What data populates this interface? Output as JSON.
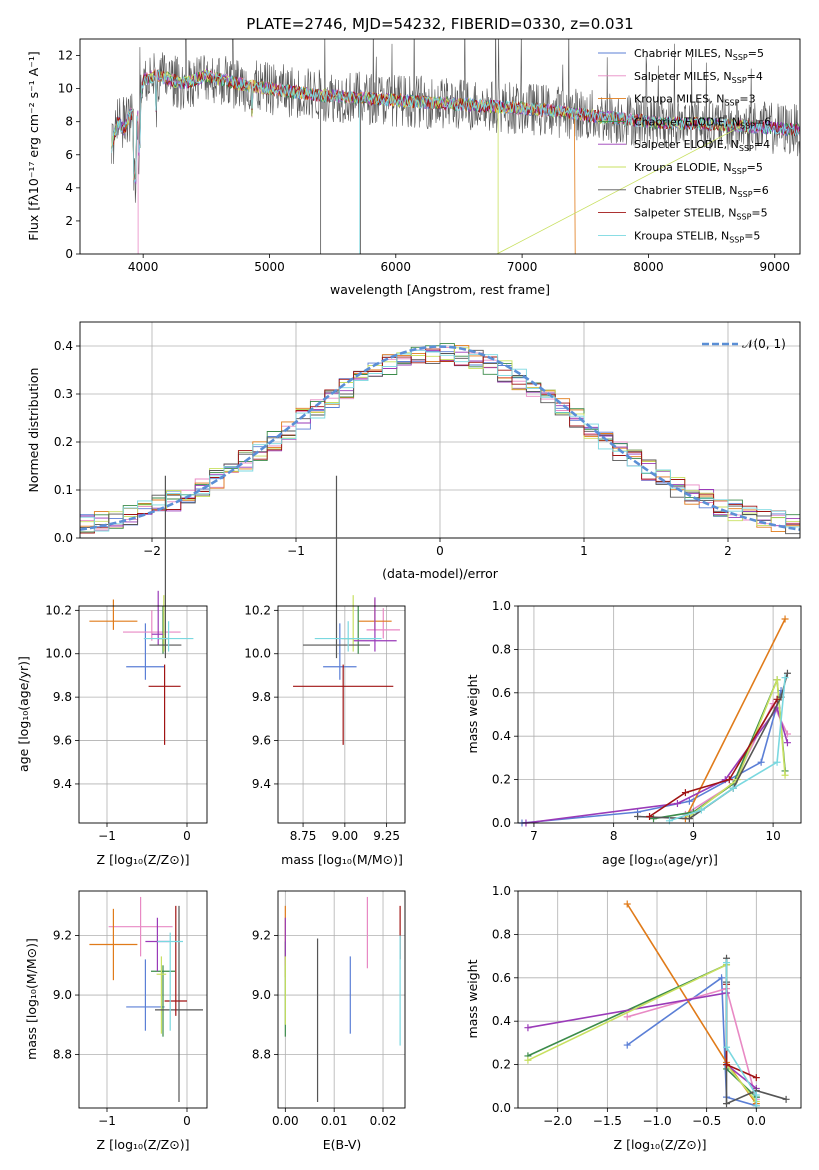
{
  "colors": [
    "#5b7fd6",
    "#e889c4",
    "#e07b1a",
    "#3b8b4a",
    "#9a3ab8",
    "#c8e060",
    "#555555",
    "#a01414",
    "#7ad8e0"
  ],
  "spectrum": {
    "title": "PLATE=2746, MJD=54232, FIBERID=0330, z=0.031",
    "xlabel": "wavelength [Angstrom, rest frame]",
    "ylabel": "Flux [fλ10⁻¹⁷ erg cm⁻² s⁻¹ A⁻¹]",
    "xticks": [
      "4000",
      "5000",
      "6000",
      "7000",
      "8000",
      "9000"
    ],
    "yticks": [
      "0",
      "2",
      "4",
      "6",
      "8",
      "10",
      "12"
    ],
    "legend": [
      {
        "model": "Chabrier MILES, N",
        "sub": "SSP",
        "tail": "=5"
      },
      {
        "model": "Salpeter MILES, N",
        "sub": "SSP",
        "tail": "=4"
      },
      {
        "model": "Kroupa MILES, N",
        "sub": "SSP",
        "tail": "=3"
      },
      {
        "model": "Chabrier ELODIE, N",
        "sub": "SSP",
        "tail": "=6"
      },
      {
        "model": "Salpeter ELODIE, N",
        "sub": "SSP",
        "tail": "=4"
      },
      {
        "model": "Kroupa ELODIE, N",
        "sub": "SSP",
        "tail": "=5"
      },
      {
        "model": "Chabrier STELIB, N",
        "sub": "SSP",
        "tail": "=6"
      },
      {
        "model": "Salpeter STELIB, N",
        "sub": "SSP",
        "tail": "=5"
      },
      {
        "model": "Kroupa STELIB, N",
        "sub": "SSP",
        "tail": "=5"
      }
    ]
  },
  "residuals": {
    "xlabel": "(data-model)/error",
    "ylabel": "Normed distribution",
    "xticks": [
      "−2",
      "−1",
      "0",
      "1",
      "2"
    ],
    "yticks": [
      "0.0",
      "0.1",
      "0.2",
      "0.3",
      "0.4"
    ],
    "legend": "𝒩(0, 1)"
  },
  "age_z": {
    "xlabel": "Z [log₁₀(Z/Z⊙)]",
    "ylabel": "age  [log₁₀(age/yr)]",
    "xticks": [
      "−1",
      "0"
    ],
    "yticks": [
      "9.4",
      "9.6",
      "9.8",
      "10.0",
      "10.2"
    ]
  },
  "age_mass": {
    "xlabel": "mass [log₁₀(M/M⊙)]",
    "xticks": [
      "8.75",
      "9.00",
      "9.25"
    ],
    "yticks": [
      "9.4",
      "9.6",
      "9.8",
      "10.0",
      "10.2"
    ]
  },
  "mw_age": {
    "xlabel": "age  [log₁₀(age/yr)]",
    "ylabel": "mass weight",
    "xticks": [
      "7",
      "8",
      "9",
      "10"
    ],
    "yticks": [
      "0.0",
      "0.2",
      "0.4",
      "0.6",
      "0.8",
      "1.0"
    ]
  },
  "mass_z": {
    "xlabel": "Z [log₁₀(Z/Z⊙)]",
    "ylabel": "mass [log₁₀(M/M⊙)]",
    "xticks": [
      "−1",
      "0"
    ],
    "yticks": [
      "8.8",
      "9.0",
      "9.2"
    ]
  },
  "mass_ebv": {
    "xlabel": "E(B-V)",
    "xticks": [
      "0.00",
      "0.01",
      "0.02"
    ],
    "yticks": [
      "8.8",
      "9.0",
      "9.2"
    ]
  },
  "mw_z": {
    "xlabel": "Z [log₁₀(Z/Z⊙)]",
    "ylabel": "mass weight",
    "xticks": [
      "−2.0",
      "−1.5",
      "−1.0",
      "−0.5",
      "0.0"
    ],
    "yticks": [
      "0.0",
      "0.2",
      "0.4",
      "0.6",
      "0.8",
      "1.0"
    ]
  },
  "chart_data": [
    {
      "type": "line",
      "title": "PLATE=2746, MJD=54232, FIBERID=0330, z=0.031",
      "xlabel": "wavelength [Angstrom, rest frame]",
      "ylabel": "Flux [fλ10⁻¹⁷ erg cm⁻² s⁻¹ A⁻¹]",
      "xlim": [
        3500,
        9200
      ],
      "ylim": [
        0,
        13
      ],
      "series_names": [
        "Chabrier MILES, NSSP=5",
        "Salpeter MILES, NSSP=4",
        "Kroupa MILES, NSSP=3",
        "Chabrier ELODIE, NSSP=6",
        "Salpeter ELODIE, NSSP=4",
        "Kroupa ELODIE, NSSP=5",
        "Chabrier STELIB, NSSP=6",
        "Salpeter STELIB, NSSP=5",
        "Kroupa STELIB, NSSP=5"
      ],
      "continuum": {
        "x": [
          3750,
          3800,
          3850,
          3900,
          3950,
          4000,
          4100,
          4200,
          4300,
          4400,
          4500,
          4600,
          4700,
          4800,
          5000,
          5200,
          5400,
          5600,
          5800,
          6000,
          6200,
          6400,
          6600,
          6800,
          7000,
          7200,
          7400,
          7600,
          7800,
          8000,
          8200,
          8400,
          8600,
          8800,
          9000,
          9200
        ],
        "y": [
          6.5,
          8.0,
          7.5,
          8.5,
          8.0,
          10.5,
          10.8,
          10.6,
          10.3,
          10.5,
          10.8,
          10.6,
          10.4,
          10.2,
          10.0,
          9.8,
          9.6,
          9.5,
          9.4,
          9.3,
          9.2,
          9.1,
          9.0,
          8.9,
          8.8,
          8.7,
          8.5,
          8.3,
          8.2,
          8.0,
          7.9,
          7.9,
          7.8,
          7.7,
          7.6,
          7.5
        ]
      },
      "grid": false,
      "legend": "upper-right"
    },
    {
      "type": "bar",
      "xlabel": "(data-model)/error",
      "ylabel": "Normed distribution",
      "xlim": [
        -2.5,
        2.5
      ],
      "ylim": [
        0,
        0.45
      ],
      "bin_width": 0.1,
      "normal_reference": {
        "name": "𝒩(0, 1)",
        "mean": 0,
        "sigma": 1
      },
      "grid": true,
      "legend": "upper-right"
    },
    {
      "type": "scatter",
      "xlabel": "Z [log₁₀(Z/Z⊙)]",
      "ylabel": "age  [log₁₀(age/yr)]",
      "xlim": [
        -1.35,
        0.25
      ],
      "ylim": [
        9.22,
        10.22
      ],
      "points": [
        {
          "x": -0.52,
          "y": 9.94,
          "xerr": 0.24,
          "yerr": [
            0.06,
            0.2
          ]
        },
        {
          "x": -0.44,
          "y": 10.1,
          "xerr": 0.36,
          "yerr": [
            0.04,
            0.1
          ]
        },
        {
          "x": -0.92,
          "y": 10.15,
          "xerr": 0.3,
          "yerr": [
            0.04,
            0.1
          ]
        },
        {
          "x": -0.3,
          "y": 10.07,
          "xerr": 0.06,
          "yerr": [
            0.07,
            0.15
          ]
        },
        {
          "x": -0.36,
          "y": 10.09,
          "xerr": 0.08,
          "yerr": [
            0.05,
            0.2
          ]
        },
        {
          "x": -0.29,
          "y": 10.07,
          "xerr": 0.05,
          "yerr": [
            0.06,
            0.2
          ]
        },
        {
          "x": -0.27,
          "y": 10.04,
          "xerr": 0.2,
          "yerr": [
            0.06,
            0.78
          ]
        },
        {
          "x": -0.28,
          "y": 9.85,
          "xerr": 0.2,
          "yerr": [
            0.27,
            0.1
          ]
        },
        {
          "x": -0.23,
          "y": 10.07,
          "xerr": 0.31,
          "yerr": [
            0.06,
            0.08
          ]
        }
      ],
      "grid": true
    },
    {
      "type": "scatter",
      "xlabel": "mass [log₁₀(M/M⊙)]",
      "ylabel": "",
      "xlim": [
        8.6,
        9.36
      ],
      "ylim": [
        9.22,
        10.22
      ],
      "points": [
        {
          "x": 8.97,
          "y": 9.94,
          "xerr": 0.1,
          "yerr": [
            0.06,
            0.2
          ]
        },
        {
          "x": 9.23,
          "y": 10.11,
          "xerr": 0.1,
          "yerr": [
            0.04,
            0.1
          ]
        },
        {
          "x": 9.18,
          "y": 10.15,
          "xerr": 0.1,
          "yerr": [
            0.04,
            0.1
          ]
        },
        {
          "x": 9.08,
          "y": 10.07,
          "xerr": 0.1,
          "yerr": [
            0.07,
            0.15
          ]
        },
        {
          "x": 9.18,
          "y": 10.06,
          "xerr": 0.13,
          "yerr": [
            0.05,
            0.2
          ]
        },
        {
          "x": 9.05,
          "y": 10.07,
          "xerr": 0.05,
          "yerr": [
            0.06,
            0.2
          ]
        },
        {
          "x": 8.95,
          "y": 10.04,
          "xerr": 0.2,
          "yerr": [
            0.06,
            0.78
          ]
        },
        {
          "x": 8.99,
          "y": 9.85,
          "xerr": 0.3,
          "yerr": [
            0.27,
            0.1
          ]
        },
        {
          "x": 9.02,
          "y": 10.07,
          "xerr": 0.2,
          "yerr": [
            0.06,
            0.08
          ]
        }
      ],
      "grid": true
    },
    {
      "type": "line",
      "xlabel": "age  [log₁₀(age/yr)]",
      "ylabel": "mass weight",
      "xlim": [
        6.8,
        10.35
      ],
      "ylim": [
        0,
        1.0
      ],
      "series": [
        {
          "x": [
            6.85,
            8.3,
            8.95,
            9.85,
            10.1
          ],
          "y": [
            0.0,
            0.05,
            0.1,
            0.28,
            0.61
          ]
        },
        {
          "x": [
            8.9,
            9.5,
            10.0,
            10.18
          ],
          "y": [
            0.04,
            0.18,
            0.55,
            0.41
          ]
        },
        {
          "x": [
            8.9,
            10.15
          ],
          "y": [
            0.02,
            0.94
          ]
        },
        {
          "x": [
            8.5,
            9.0,
            9.5,
            10.05,
            10.15
          ],
          "y": [
            0.02,
            0.05,
            0.18,
            0.66,
            0.24
          ]
        },
        {
          "x": [
            6.9,
            8.8,
            9.4,
            10.05,
            10.18
          ],
          "y": [
            0.0,
            0.09,
            0.2,
            0.53,
            0.37
          ]
        },
        {
          "x": [
            8.95,
            9.55,
            10.05,
            10.15
          ],
          "y": [
            0.03,
            0.2,
            0.66,
            0.22
          ]
        },
        {
          "x": [
            8.3,
            8.95,
            9.5,
            10.1,
            10.18
          ],
          "y": [
            0.03,
            0.02,
            0.16,
            0.58,
            0.69
          ]
        },
        {
          "x": [
            8.45,
            8.9,
            9.45,
            10.05
          ],
          "y": [
            0.03,
            0.14,
            0.2,
            0.57
          ]
        },
        {
          "x": [
            8.7,
            9.1,
            9.5,
            10.05,
            10.15
          ],
          "y": [
            0.01,
            0.06,
            0.16,
            0.28,
            0.67
          ]
        }
      ],
      "grid": true
    },
    {
      "type": "scatter",
      "xlabel": "Z [log₁₀(Z/Z⊙)]",
      "ylabel": "mass [log₁₀(M/M⊙)]",
      "xlim": [
        -1.35,
        0.25
      ],
      "ylim": [
        8.62,
        9.35
      ],
      "points": [
        {
          "x": -0.52,
          "y": 8.96,
          "xerr": 0.24,
          "yerr": [
            0.08,
            0.16
          ]
        },
        {
          "x": -0.58,
          "y": 9.23,
          "xerr": 0.4,
          "yerr": [
            0.1,
            0.1
          ]
        },
        {
          "x": -0.92,
          "y": 9.17,
          "xerr": 0.3,
          "yerr": [
            0.12,
            0.12
          ]
        },
        {
          "x": -0.3,
          "y": 9.08,
          "xerr": 0.15,
          "yerr": [
            0.22,
            0.02
          ]
        },
        {
          "x": -0.37,
          "y": 9.18,
          "xerr": 0.15,
          "yerr": [
            0.1,
            0.08
          ]
        },
        {
          "x": -0.32,
          "y": 9.07,
          "xerr": 0.06,
          "yerr": [
            0.2,
            0.06
          ]
        },
        {
          "x": -0.1,
          "y": 8.95,
          "xerr": 0.3,
          "yerr": [
            0.31,
            0.35
          ]
        },
        {
          "x": -0.14,
          "y": 8.98,
          "xerr": 0.14,
          "yerr": [
            0.05,
            0.32
          ]
        },
        {
          "x": -0.21,
          "y": 9.18,
          "xerr": 0.16,
          "yerr": [
            0.3,
            0.03
          ]
        }
      ],
      "grid": true
    },
    {
      "type": "scatter",
      "xlabel": "E(B-V)",
      "ylabel": "",
      "xlim": [
        -0.0015,
        0.0245
      ],
      "ylim": [
        8.62,
        9.35
      ],
      "points": [
        {
          "x": 0.0133,
          "y": 9.0,
          "yerr": [
            0.13,
            0.13
          ]
        },
        {
          "x": 0.0168,
          "y": 9.21,
          "yerr": [
            0.12,
            0.12
          ]
        },
        {
          "x": 0.0,
          "y": 9.18,
          "yerr": [
            0.12,
            0.12
          ]
        },
        {
          "x": 0.0,
          "y": 9.08,
          "yerr": [
            0.22,
            0.1
          ]
        },
        {
          "x": 0.0,
          "y": 9.2,
          "yerr": [
            0.1,
            0.06
          ]
        },
        {
          "x": 0.0,
          "y": 9.05,
          "yerr": [
            0.15,
            0.08
          ]
        },
        {
          "x": 0.0066,
          "y": 8.92,
          "yerr": [
            0.28,
            0.27
          ]
        },
        {
          "x": 0.0235,
          "y": 9.22,
          "yerr": [
            0.1,
            0.08
          ]
        },
        {
          "x": 0.0235,
          "y": 9.05,
          "yerr": [
            0.22,
            0.15
          ]
        }
      ],
      "grid": true
    },
    {
      "type": "line",
      "xlabel": "Z [log₁₀(Z/Z⊙)]",
      "ylabel": "mass weight",
      "xlim": [
        -2.4,
        0.45
      ],
      "ylim": [
        0,
        1.0
      ],
      "series": [
        {
          "x": [
            -1.3,
            -0.35,
            -0.3,
            0.0,
            0.0
          ],
          "y": [
            0.29,
            0.6,
            0.05,
            0.01,
            0.05
          ]
        },
        {
          "x": [
            -1.3,
            -0.3,
            0.0
          ],
          "y": [
            0.42,
            0.55,
            0.04
          ]
        },
        {
          "x": [
            -1.3,
            -0.3,
            0.0
          ],
          "y": [
            0.94,
            0.21,
            0.02
          ]
        },
        {
          "x": [
            -2.3,
            -0.3,
            -0.3,
            0.0
          ],
          "y": [
            0.24,
            0.66,
            0.18,
            0.05
          ]
        },
        {
          "x": [
            -2.3,
            -0.3,
            -0.3,
            0.0
          ],
          "y": [
            0.37,
            0.53,
            0.2,
            0.09
          ]
        },
        {
          "x": [
            -2.3,
            -0.3,
            -0.3,
            0.0
          ],
          "y": [
            0.22,
            0.66,
            0.2,
            0.03
          ]
        },
        {
          "x": [
            -0.3,
            -0.3,
            -0.3,
            0.0,
            0.3
          ],
          "y": [
            0.69,
            0.58,
            0.02,
            0.08,
            0.04
          ]
        },
        {
          "x": [
            -0.3,
            -0.3,
            0.0
          ],
          "y": [
            0.57,
            0.2,
            0.14
          ]
        },
        {
          "x": [
            -0.3,
            -0.3,
            0.0,
            0.0
          ],
          "y": [
            0.67,
            0.28,
            0.06,
            0.01
          ]
        }
      ],
      "grid": true
    }
  ]
}
